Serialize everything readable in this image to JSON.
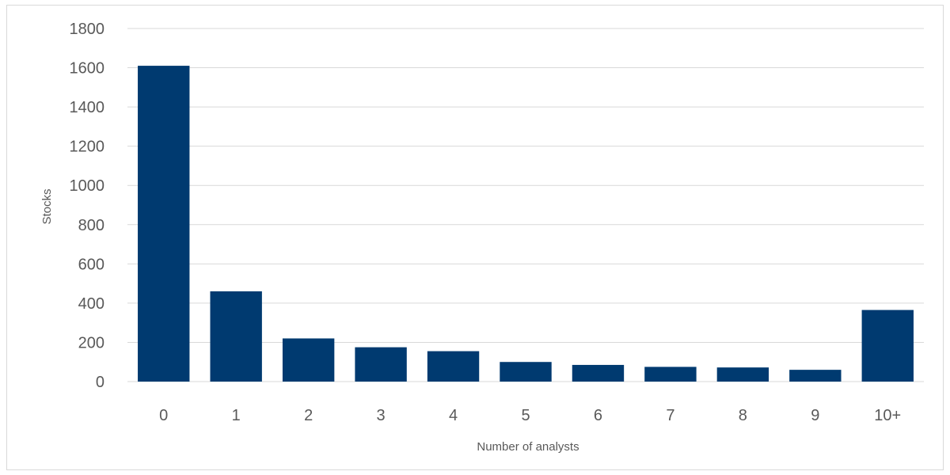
{
  "chart_data": {
    "type": "bar",
    "categories": [
      "0",
      "1",
      "2",
      "3",
      "4",
      "5",
      "6",
      "7",
      "8",
      "9",
      "10+"
    ],
    "values": [
      1610,
      460,
      220,
      175,
      155,
      100,
      85,
      75,
      72,
      60,
      365
    ],
    "xlabel": "Number of analysts",
    "ylabel": "Stocks",
    "ylim": [
      0,
      1800
    ],
    "yticks": [
      0,
      200,
      400,
      600,
      800,
      1000,
      1200,
      1400,
      1600,
      1800
    ],
    "grid": true,
    "bar_color": "#003A70",
    "grid_color": "#D9D9D9"
  }
}
